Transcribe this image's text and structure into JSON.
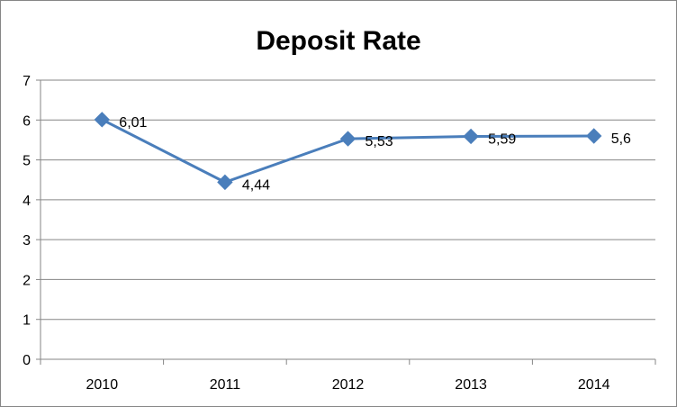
{
  "chart_data": {
    "type": "line",
    "title": "Deposit Rate",
    "categories": [
      "2010",
      "2011",
      "2012",
      "2013",
      "2014"
    ],
    "series": [
      {
        "values": [
          6.01,
          4.44,
          5.53,
          5.59,
          5.6
        ],
        "data_labels": [
          "6,01",
          "4,44",
          "5,53",
          "5,59",
          "5,6"
        ],
        "color": "#4a7ebb",
        "marker": "diamond"
      }
    ],
    "ylim": [
      0,
      7
    ],
    "yticks": [
      "0",
      "1",
      "2",
      "3",
      "4",
      "5",
      "6",
      "7"
    ],
    "grid": true,
    "legend": "none",
    "colors": {
      "gridline": "#868686",
      "axis": "#868686",
      "border": "#868686"
    }
  }
}
